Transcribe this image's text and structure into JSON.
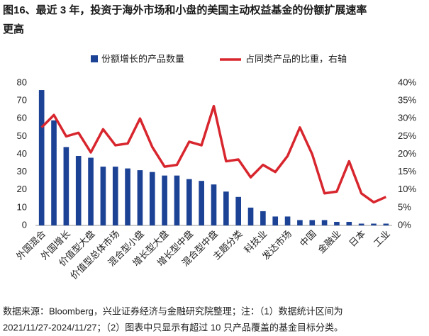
{
  "chart_data": {
    "type": "bar_line",
    "title": [
      "图16、最近 3 年，投资于海外市场和小盘的美国主动权益基金的份额扩展速率",
      "更高"
    ],
    "categories": [
      "外国混合",
      null,
      "外国增长",
      null,
      "价值型大盘",
      null,
      "价值型总体市场",
      null,
      "混合型小盘",
      null,
      "增长型大盘",
      null,
      "增长型中盘",
      null,
      "混合型中盘",
      null,
      "主题分类",
      null,
      "科技业",
      null,
      "发达市场",
      null,
      "中国",
      null,
      "金融业",
      null,
      "日本",
      null,
      "工业"
    ],
    "series": [
      {
        "name": "份额增长的产品数量",
        "color": "#1c4295",
        "axis": "y",
        "values": [
          76,
          59,
          44,
          39,
          38,
          33,
          33,
          32,
          31,
          30,
          28,
          28,
          26,
          25,
          23,
          19,
          16,
          10,
          8,
          5,
          5,
          3,
          3,
          3,
          2,
          2,
          1,
          1,
          1
        ]
      },
      {
        "name": "占同类产品的比重，右轴",
        "color": "#d8262e",
        "axis": "y2",
        "values": [
          27.5,
          31,
          25,
          26,
          20.5,
          27,
          22.5,
          23,
          30,
          22,
          16.5,
          17,
          23.5,
          22.5,
          33.5,
          18,
          18.5,
          13.5,
          17,
          15,
          19.5,
          27.5,
          20,
          9,
          9.5,
          18,
          9,
          6.5,
          8
        ]
      }
    ],
    "ylim": [
      0,
      80
    ],
    "yticks": [
      0,
      10,
      20,
      30,
      40,
      50,
      60,
      70,
      80
    ],
    "y2lim": [
      0,
      40
    ],
    "y2ticks": [
      {
        "value": 0,
        "label": "0%"
      },
      {
        "value": 5,
        "label": "5%"
      },
      {
        "value": 10,
        "label": "10%"
      },
      {
        "value": 15,
        "label": "15%"
      },
      {
        "value": 20,
        "label": "20%"
      },
      {
        "value": 25,
        "label": "25%"
      },
      {
        "value": 30,
        "label": "30%"
      },
      {
        "value": 35,
        "label": "35%"
      },
      {
        "value": 40,
        "label": "40%"
      }
    ],
    "note": [
      "数据来源：Bloomberg，兴业证券经济与金融研究院整理；注：（1）数据统计区间为",
      "2021/11/27-2024/11/27；（2）图表中只显示有超过 10 只产品覆盖的基金目标分类。"
    ]
  }
}
